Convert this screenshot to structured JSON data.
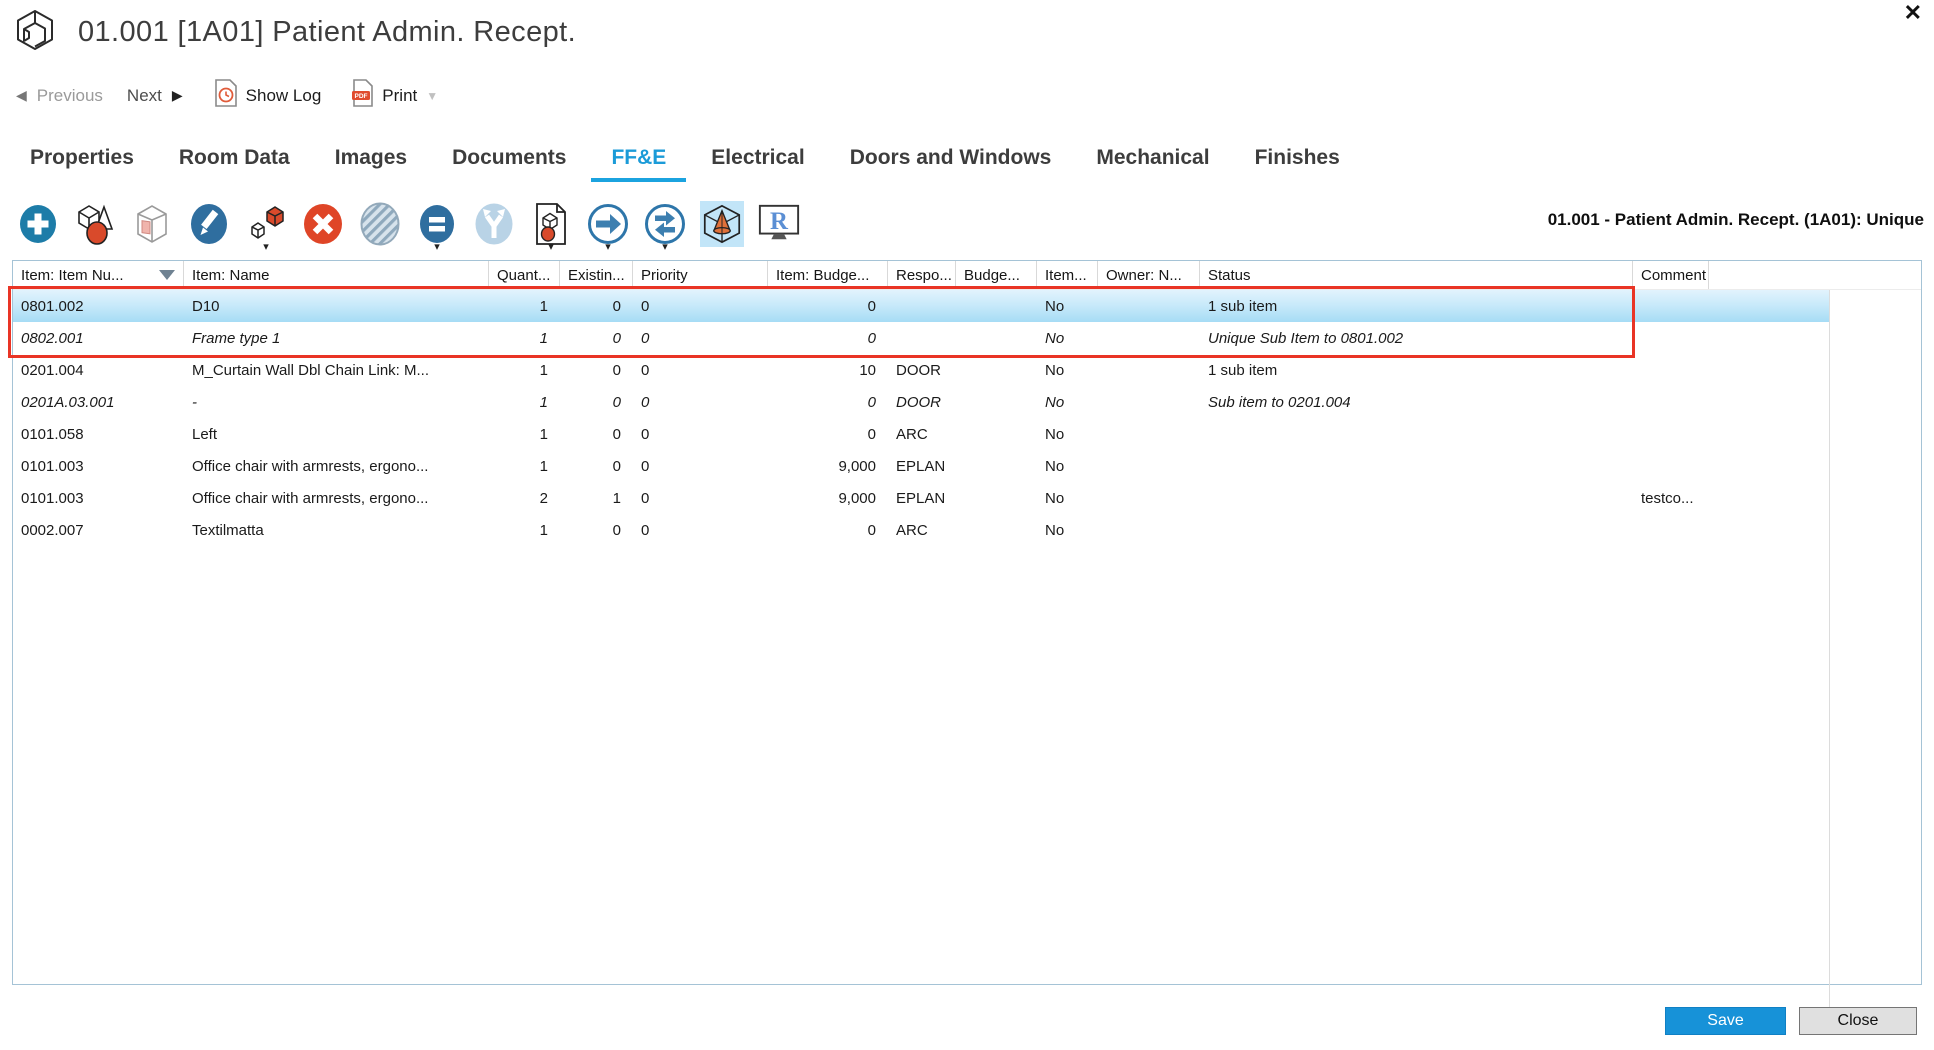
{
  "window": {
    "title": "01.001 [1A01] Patient Admin. Recept.",
    "close_glyph": "✕"
  },
  "nav": {
    "previous_label": "Previous",
    "next_label": "Next",
    "show_log_label": "Show Log",
    "print_label": "Print"
  },
  "tabs": [
    {
      "label": "Properties",
      "active": false
    },
    {
      "label": "Room Data",
      "active": false
    },
    {
      "label": "Images",
      "active": false
    },
    {
      "label": "Documents",
      "active": false
    },
    {
      "label": "FF&E",
      "active": true
    },
    {
      "label": "Electrical",
      "active": false
    },
    {
      "label": "Doors and Windows",
      "active": false
    },
    {
      "label": "Mechanical",
      "active": false
    },
    {
      "label": "Finishes",
      "active": false
    }
  ],
  "toolbar": {
    "context_label": "01.001 - Patient Admin. Recept. (1A01): Unique",
    "icons": [
      {
        "name": "add-icon",
        "dropdown": false,
        "state": "normal"
      },
      {
        "name": "geometry-item-icon",
        "dropdown": false,
        "state": "normal"
      },
      {
        "name": "package-icon",
        "dropdown": false,
        "state": "normal"
      },
      {
        "name": "edit-icon",
        "dropdown": false,
        "state": "normal"
      },
      {
        "name": "cube-stack-icon",
        "dropdown": true,
        "state": "normal"
      },
      {
        "name": "delete-icon",
        "dropdown": false,
        "state": "normal"
      },
      {
        "name": "hatched-circle-icon",
        "dropdown": false,
        "state": "disabled"
      },
      {
        "name": "equals-icon",
        "dropdown": true,
        "state": "normal"
      },
      {
        "name": "split-arrow-icon",
        "dropdown": false,
        "state": "disabled"
      },
      {
        "name": "item-document-icon",
        "dropdown": true,
        "state": "normal"
      },
      {
        "name": "arrow-right-icon",
        "dropdown": true,
        "state": "normal"
      },
      {
        "name": "sync-arrows-icon",
        "dropdown": true,
        "state": "normal"
      },
      {
        "name": "cube-cone-icon",
        "dropdown": false,
        "state": "active"
      },
      {
        "name": "revit-monitor-icon",
        "dropdown": false,
        "state": "normal"
      }
    ]
  },
  "table": {
    "columns": [
      {
        "key": "number",
        "label": "Item: Item Nu...",
        "sorted": true
      },
      {
        "key": "name",
        "label": "Item: Name",
        "sorted": false
      },
      {
        "key": "quantity",
        "label": "Quant...",
        "sorted": false
      },
      {
        "key": "existing",
        "label": "Existin...",
        "sorted": false
      },
      {
        "key": "priority",
        "label": "Priority",
        "sorted": false
      },
      {
        "key": "budget",
        "label": "Item: Budge...",
        "sorted": false
      },
      {
        "key": "responsible",
        "label": "Respo...",
        "sorted": false
      },
      {
        "key": "budget2",
        "label": "Budge...",
        "sorted": false
      },
      {
        "key": "item3",
        "label": "Item...",
        "sorted": false
      },
      {
        "key": "owner",
        "label": "Owner: N...",
        "sorted": false
      },
      {
        "key": "status",
        "label": "Status",
        "sorted": false
      },
      {
        "key": "comment",
        "label": "Comment",
        "sorted": false
      }
    ],
    "rows": [
      {
        "number": "0801.002",
        "name": "D10",
        "quantity": "1",
        "existing": "0",
        "priority": "0",
        "budget": "0",
        "responsible": "",
        "budget2": "",
        "item3": "No",
        "owner": "",
        "status": "1 sub item",
        "comment": "",
        "selected": true,
        "italic": false
      },
      {
        "number": "0802.001",
        "name": "Frame type 1",
        "quantity": "1",
        "existing": "0",
        "priority": "0",
        "budget": "0",
        "responsible": "",
        "budget2": "",
        "item3": "No",
        "owner": "",
        "status": "Unique Sub Item to 0801.002",
        "comment": "",
        "selected": false,
        "italic": true
      },
      {
        "number": "0201.004",
        "name": "M_Curtain Wall Dbl Chain Link: M...",
        "quantity": "1",
        "existing": "0",
        "priority": "0",
        "budget": "10",
        "responsible": "DOOR",
        "budget2": "",
        "item3": "No",
        "owner": "",
        "status": "1 sub item",
        "comment": "",
        "selected": false,
        "italic": false
      },
      {
        "number": "0201A.03.001",
        "name": "-",
        "quantity": "1",
        "existing": "0",
        "priority": "0",
        "budget": "0",
        "responsible": "DOOR",
        "budget2": "",
        "item3": "No",
        "owner": "",
        "status": "Sub item to 0201.004",
        "comment": "",
        "selected": false,
        "italic": true
      },
      {
        "number": "0101.058",
        "name": "Left",
        "quantity": "1",
        "existing": "0",
        "priority": "0",
        "budget": "0",
        "responsible": "ARC",
        "budget2": "",
        "item3": "No",
        "owner": "",
        "status": "",
        "comment": "",
        "selected": false,
        "italic": false
      },
      {
        "number": "0101.003",
        "name": "Office chair with armrests, ergono...",
        "quantity": "1",
        "existing": "0",
        "priority": "0",
        "budget": "9,000",
        "responsible": "EPLAN",
        "budget2": "",
        "item3": "No",
        "owner": "",
        "status": "",
        "comment": "",
        "selected": false,
        "italic": false
      },
      {
        "number": "0101.003",
        "name": "Office chair with armrests, ergono...",
        "quantity": "2",
        "existing": "1",
        "priority": "0",
        "budget": "9,000",
        "responsible": "EPLAN",
        "budget2": "",
        "item3": "No",
        "owner": "",
        "status": "",
        "comment": "testco...",
        "selected": false,
        "italic": false
      },
      {
        "number": "0002.007",
        "name": "Textilmatta",
        "quantity": "1",
        "existing": "0",
        "priority": "0",
        "budget": "0",
        "responsible": "ARC",
        "budget2": "",
        "item3": "No",
        "owner": "",
        "status": "",
        "comment": "",
        "selected": false,
        "italic": false
      }
    ]
  },
  "annotation": {
    "type": "red-rectangle",
    "covers": "rows 0801.002 and 0802.001"
  },
  "footer": {
    "save_label": "Save",
    "close_label": "Close"
  },
  "colors": {
    "accent_blue": "#1b9bd8",
    "tab_underline": "#1ba3df",
    "selection_top": "#e2f3fd",
    "selection_bottom": "#a6dcf5",
    "annotation_red": "#e93425",
    "save_button": "#1792d8",
    "delete_red": "#df4527",
    "toolbar_blue": "#2f6e9f"
  }
}
